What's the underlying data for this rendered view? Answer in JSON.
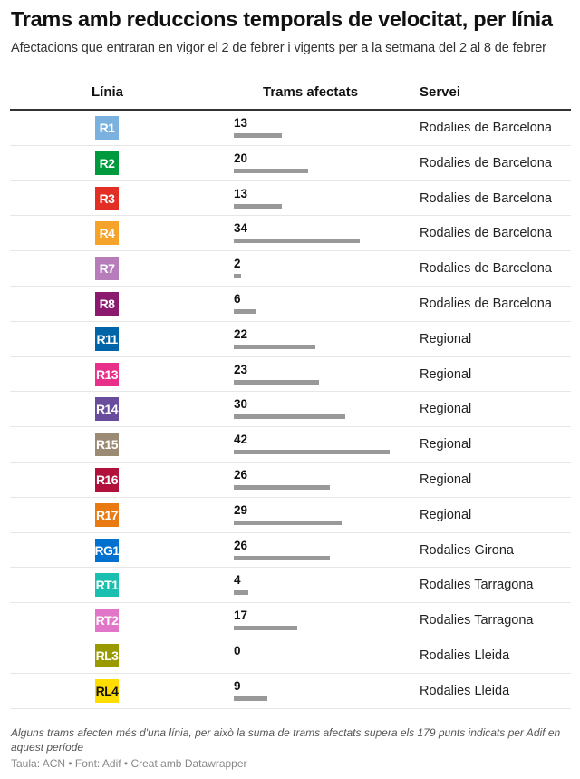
{
  "chart_data": {
    "type": "table",
    "title": "Trams amb reduccions temporals de velocitat, per línia",
    "subtitle": "Afectacions que entraran en vigor el 2 de febrer i vigents per a la setmana del 2 al 8 de febrer",
    "columns": [
      "Línia",
      "Trams afectats",
      "Servei"
    ],
    "bar_max": 42,
    "rows": [
      {
        "line": "R1",
        "color": "#7BB1DF",
        "text_color": "#ffffff",
        "value": 13,
        "service": "Rodalies de Barcelona"
      },
      {
        "line": "R2",
        "color": "#009A3E",
        "text_color": "#ffffff",
        "value": 20,
        "service": "Rodalies de Barcelona"
      },
      {
        "line": "R3",
        "color": "#E32E26",
        "text_color": "#ffffff",
        "value": 13,
        "service": "Rodalies de Barcelona"
      },
      {
        "line": "R4",
        "color": "#F5A32B",
        "text_color": "#ffffff",
        "value": 34,
        "service": "Rodalies de Barcelona"
      },
      {
        "line": "R7",
        "color": "#B77DBB",
        "text_color": "#ffffff",
        "value": 2,
        "service": "Rodalies de Barcelona"
      },
      {
        "line": "R8",
        "color": "#8B1A6E",
        "text_color": "#ffffff",
        "value": 6,
        "service": "Rodalies de Barcelona"
      },
      {
        "line": "R11",
        "color": "#0064A8",
        "text_color": "#ffffff",
        "value": 22,
        "service": "Regional"
      },
      {
        "line": "R13",
        "color": "#E8308A",
        "text_color": "#ffffff",
        "value": 23,
        "service": "Regional"
      },
      {
        "line": "R14",
        "color": "#6A4C9C",
        "text_color": "#ffffff",
        "value": 30,
        "service": "Regional"
      },
      {
        "line": "R15",
        "color": "#9B8A74",
        "text_color": "#ffffff",
        "value": 42,
        "service": "Regional"
      },
      {
        "line": "R16",
        "color": "#B0103A",
        "text_color": "#ffffff",
        "value": 26,
        "service": "Regional"
      },
      {
        "line": "R17",
        "color": "#E97A12",
        "text_color": "#ffffff",
        "value": 29,
        "service": "Regional"
      },
      {
        "line": "RG1",
        "color": "#0071CE",
        "text_color": "#ffffff",
        "value": 26,
        "service": "Rodalies Girona"
      },
      {
        "line": "RT1",
        "color": "#1BBFB0",
        "text_color": "#ffffff",
        "value": 4,
        "service": "Rodalies Tarragona"
      },
      {
        "line": "RT2",
        "color": "#E176C8",
        "text_color": "#ffffff",
        "value": 17,
        "service": "Rodalies Tarragona"
      },
      {
        "line": "RL3",
        "color": "#999900",
        "text_color": "#ffffff",
        "value": 0,
        "service": "Rodalies Lleida"
      },
      {
        "line": "RL4",
        "color": "#FFDD00",
        "text_color": "#111111",
        "value": 9,
        "service": "Rodalies Lleida"
      }
    ],
    "note": "Alguns trams afecten més d'una línia, per això la suma de trams afectats supera els 179 punts indicats per Adif en aquest període",
    "credit": "Taula: ACN • Font: Adif • Creat amb Datawrapper"
  }
}
